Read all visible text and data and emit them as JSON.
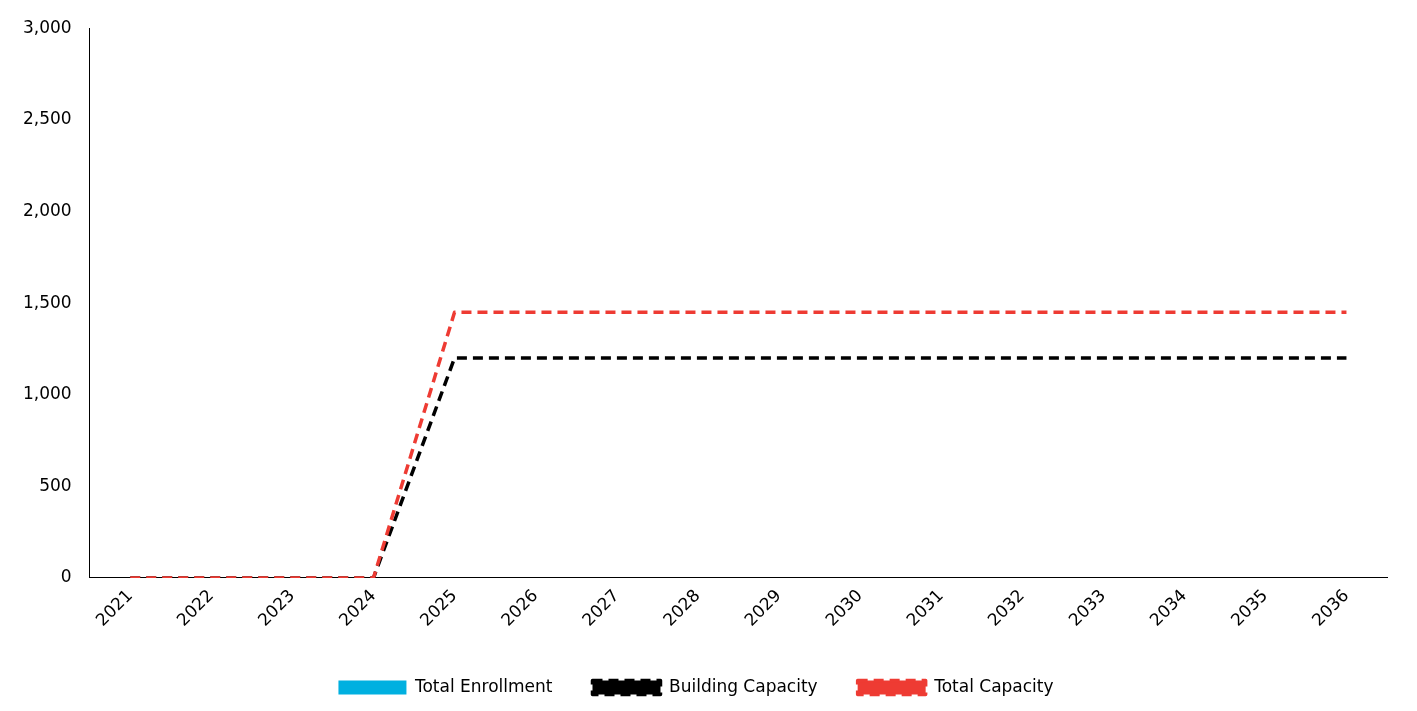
{
  "chart_data": {
    "type": "bar",
    "categories": [
      "2021",
      "2022",
      "2023",
      "2024",
      "2025",
      "2026",
      "2027",
      "2028",
      "2029",
      "2030",
      "2031",
      "2032",
      "2033",
      "2034",
      "2035",
      "2036"
    ],
    "series": [
      {
        "name": "Total Enrollment",
        "color": "#00b0e0",
        "values": [
          null,
          null,
          null,
          null,
          null,
          null,
          null,
          null,
          null,
          null,
          null,
          null,
          null,
          null,
          null,
          null
        ]
      },
      {
        "name": "Building Capacity",
        "type": "line",
        "color": "#000000",
        "line_style": "dashed",
        "values": [
          0,
          0,
          0,
          0,
          1200,
          1200,
          1200,
          1200,
          1200,
          1200,
          1200,
          1200,
          1200,
          1200,
          1200,
          1200
        ]
      },
      {
        "name": "Total Capacity",
        "type": "line",
        "color": "#ee3b33",
        "line_style": "dashed",
        "values": [
          0,
          0,
          0,
          0,
          1450,
          1450,
          1450,
          1450,
          1450,
          1450,
          1450,
          1450,
          1450,
          1450,
          1450,
          1450
        ]
      }
    ],
    "ylim": [
      0,
      3000
    ],
    "yticks": [
      0,
      500,
      {
        "value": 1000,
        "label": "1,000"
      },
      {
        "value": 1500,
        "label": "1,500"
      },
      {
        "value": 2000,
        "label": "2,000"
      },
      {
        "value": 2500,
        "label": "2,500"
      },
      {
        "value": 3000,
        "label": "3,000"
      }
    ],
    "grid": false,
    "legend": "bottom",
    "marker": "none"
  }
}
